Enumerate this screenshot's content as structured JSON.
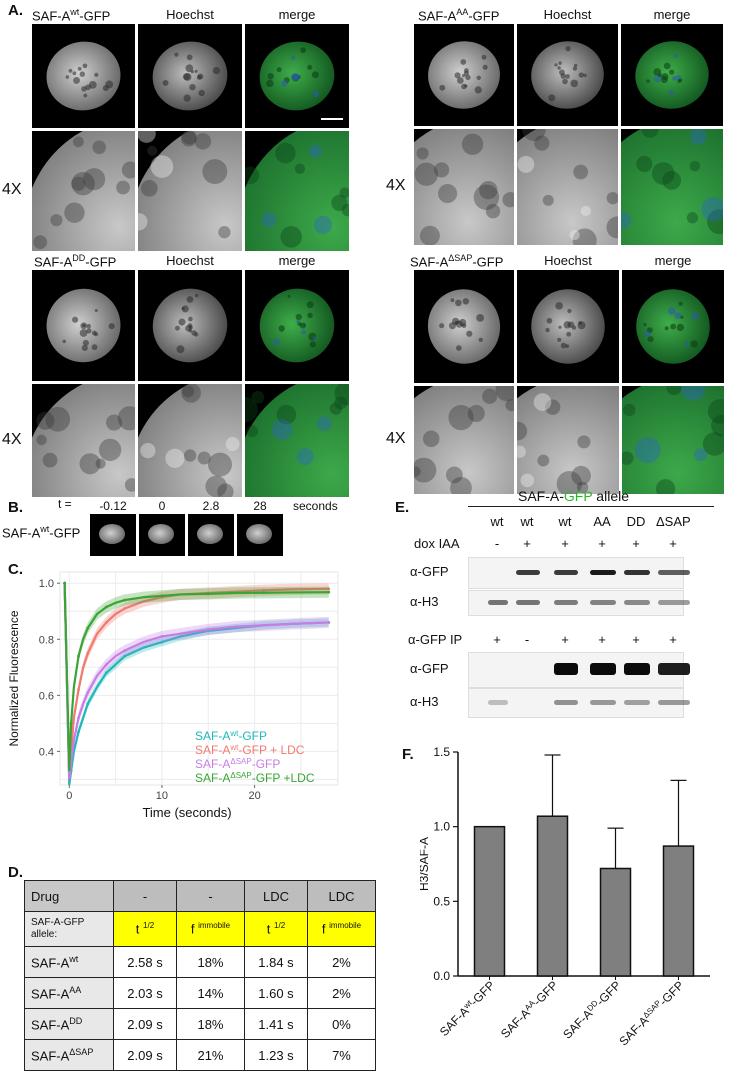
{
  "panel_labels": {
    "A": "A.",
    "B": "B.",
    "C": "C.",
    "D": "D.",
    "E": "E.",
    "F": "F."
  },
  "panel_a": {
    "channels": [
      "Hoechst",
      "merge"
    ],
    "zoom_label": "4X",
    "constructs": [
      {
        "base": "SAF-A",
        "sup": "wt",
        "tail": "-GFP"
      },
      {
        "base": "SAF-A",
        "sup": "AA",
        "tail": "-GFP"
      },
      {
        "base": "SAF-A",
        "sup": "DD",
        "tail": "-GFP"
      },
      {
        "base": "SAF-A",
        "sup": "ΔSAP",
        "tail": "-GFP"
      }
    ]
  },
  "panel_b": {
    "t_label": "t =",
    "times": [
      "-0.12",
      "0",
      "2.8",
      "28"
    ],
    "unit": "seconds",
    "row_label": {
      "base": "SAF-A",
      "sup": "wt",
      "tail": "-GFP"
    }
  },
  "colors": {
    "teal": "#1fb8b8",
    "salmon": "#f07a72",
    "violet": "#c77de6",
    "green": "#3aa535",
    "bar_fill": "#7f7f7f",
    "highlight": "#ffff00"
  },
  "panel_d": {
    "header": [
      "Drug",
      "-",
      "-",
      "LDC",
      "LDC"
    ],
    "subheader": {
      "label": "SAF-A-GFP allele:",
      "cols": [
        {
          "base": "t",
          "sup": "1/2"
        },
        {
          "base": "f",
          "sup": "immobile"
        },
        {
          "base": "t",
          "sup": "1/2"
        },
        {
          "base": "f",
          "sup": "immobile"
        }
      ]
    },
    "rows": [
      {
        "base": "SAF-A",
        "sup": "wt",
        "values": [
          "2.58 s",
          "18%",
          "1.84 s",
          "2%"
        ]
      },
      {
        "base": "SAF-A",
        "sup": "AA",
        "values": [
          "2.03 s",
          "14%",
          "1.60 s",
          "2%"
        ]
      },
      {
        "base": "SAF-A",
        "sup": "DD",
        "values": [
          "2.09 s",
          "18%",
          "1.41 s",
          "0%"
        ]
      },
      {
        "base": "SAF-A",
        "sup": "ΔSAP",
        "values": [
          "2.09 s",
          "21%",
          "1.23 s",
          "7%"
        ]
      }
    ]
  },
  "panel_e": {
    "allele_title_pre": "SAF-A-",
    "allele_title_gfp": "GFP",
    "allele_title_post": " allele",
    "lanes": [
      "wt",
      "wt",
      "wt",
      "AA",
      "DD",
      "ΔSAP"
    ],
    "dox_label": "dox IAA",
    "dox": [
      "-",
      "+",
      "+",
      "+",
      "+",
      "+"
    ],
    "ip_label": "α-GFP IP",
    "ip": [
      "+",
      "-",
      "+",
      "+",
      "+",
      "+"
    ],
    "blot_labels": [
      "α-GFP",
      "α-H3",
      "α-GFP",
      "α-H3"
    ],
    "band_levels": {
      "input_gfp": [
        0,
        0.75,
        0.75,
        0.95,
        0.8,
        0.55
      ],
      "input_h3": [
        0.55,
        0.55,
        0.5,
        0.45,
        0.4,
        0.3
      ],
      "ip_gfp": [
        0,
        0,
        1,
        1,
        1,
        0.9
      ],
      "ip_h3": [
        0.05,
        0,
        0.35,
        0.3,
        0.25,
        0.3
      ]
    }
  },
  "chart_data": [
    {
      "type": "line",
      "panel": "C",
      "xlabel": "Time (seconds)",
      "ylabel": "Normalized Fluorescence",
      "xlim": [
        -1,
        29
      ],
      "ylim": [
        0.28,
        1.04
      ],
      "xticks": [
        0,
        10,
        20
      ],
      "yticks": [
        0.4,
        0.6,
        0.8,
        1.0
      ],
      "ytick_labels": [
        "0.4",
        "0.6",
        "0.8",
        "1.0"
      ],
      "grid": true,
      "legend_position": "bottom-right",
      "legend": [
        {
          "base": "SAF-A",
          "sup": "wt",
          "tail": "-GFP",
          "color": "#1fb8b8"
        },
        {
          "base": "SAF-A",
          "sup": "wt",
          "tail": "-GFP + LDC",
          "color": "#f07a72"
        },
        {
          "base": "SAF-A",
          "sup": "ΔSAP",
          "tail": "-GFP",
          "color": "#c77de6"
        },
        {
          "base": "SAF-A",
          "sup": "ΔSAP",
          "tail": "-GFP +LDC",
          "color": "#3aa535"
        }
      ],
      "series": [
        {
          "name": "SAF-Awt-GFP",
          "color": "#1fb8b8",
          "x": [
            -0.5,
            0,
            0.2,
            0.5,
            1,
            1.5,
            2,
            3,
            4,
            5,
            6,
            8,
            10,
            12,
            15,
            18,
            21,
            24,
            28
          ],
          "y": [
            1.0,
            0.28,
            0.33,
            0.4,
            0.47,
            0.52,
            0.57,
            0.63,
            0.68,
            0.71,
            0.74,
            0.77,
            0.79,
            0.81,
            0.83,
            0.84,
            0.85,
            0.855,
            0.86
          ],
          "band": 0.015
        },
        {
          "name": "SAF-Awt-GFP + LDC",
          "color": "#f07a72",
          "x": [
            -0.5,
            0,
            0.2,
            0.5,
            1,
            1.5,
            2,
            3,
            4,
            5,
            6,
            8,
            10,
            12,
            15,
            18,
            21,
            24,
            28
          ],
          "y": [
            1.0,
            0.3,
            0.4,
            0.52,
            0.62,
            0.7,
            0.75,
            0.82,
            0.86,
            0.89,
            0.91,
            0.935,
            0.95,
            0.96,
            0.965,
            0.97,
            0.975,
            0.978,
            0.98
          ],
          "band": 0.02
        },
        {
          "name": "SAF-AΔSAP-GFP",
          "color": "#c77de6",
          "x": [
            -0.5,
            0,
            0.2,
            0.5,
            1,
            1.5,
            2,
            3,
            4,
            5,
            6,
            8,
            10,
            12,
            15,
            18,
            21,
            24,
            28
          ],
          "y": [
            1.0,
            0.3,
            0.36,
            0.44,
            0.52,
            0.57,
            0.61,
            0.67,
            0.71,
            0.74,
            0.76,
            0.79,
            0.81,
            0.82,
            0.835,
            0.845,
            0.85,
            0.855,
            0.86
          ],
          "band": 0.02
        },
        {
          "name": "SAF-AΔSAP-GFP +LDC",
          "color": "#3aa535",
          "x": [
            -0.5,
            0,
            0.2,
            0.5,
            1,
            1.5,
            2,
            3,
            4,
            5,
            6,
            8,
            10,
            12,
            15,
            18,
            21,
            24,
            28
          ],
          "y": [
            1.0,
            0.33,
            0.5,
            0.63,
            0.74,
            0.8,
            0.84,
            0.89,
            0.915,
            0.93,
            0.94,
            0.95,
            0.955,
            0.96,
            0.962,
            0.965,
            0.966,
            0.967,
            0.968
          ],
          "band": 0.02
        }
      ]
    },
    {
      "type": "bar",
      "panel": "F",
      "ylabel": "H3/SAF-A",
      "ylim": [
        0,
        1.5
      ],
      "yticks": [
        0.0,
        0.5,
        1.0,
        1.5
      ],
      "ytick_labels": [
        "0.0",
        "0.5",
        "1.0",
        "1.5"
      ],
      "categories": [
        {
          "base": "SAF-A",
          "sup": "wt",
          "tail": "-GFP"
        },
        {
          "base": "SAF-A",
          "sup": "AA",
          "tail": "-GFP"
        },
        {
          "base": "SAF-A",
          "sup": "DD",
          "tail": "-GFP"
        },
        {
          "base": "SAF-A",
          "sup": "ΔSAP",
          "tail": "-GFP"
        }
      ],
      "values": [
        1.0,
        1.07,
        0.72,
        0.87
      ],
      "errors": [
        0,
        0.41,
        0.27,
        0.44
      ]
    }
  ]
}
